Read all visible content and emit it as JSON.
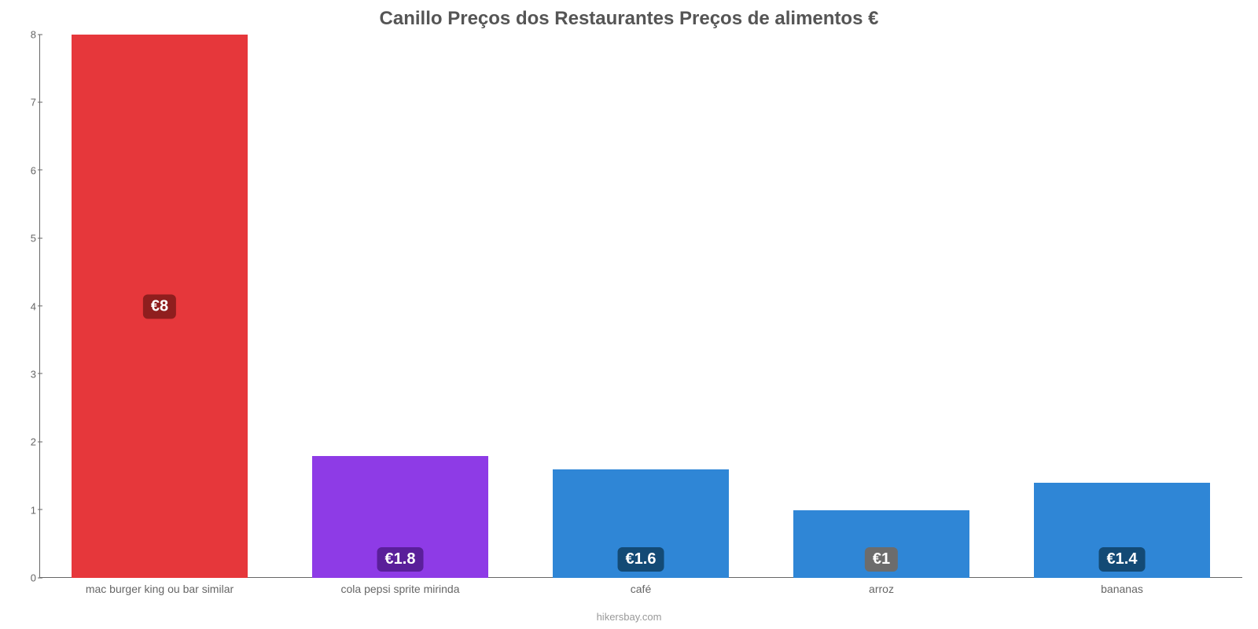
{
  "chart": {
    "type": "bar",
    "title": "Canillo Preços dos Restaurantes Preços de alimentos €",
    "title_fontsize": 24,
    "title_color": "#555555",
    "attribution": "hikersbay.com",
    "attribution_color": "#999999",
    "background_color": "#ffffff",
    "axis_color": "#666666",
    "label_fontsize": 14,
    "ylim": [
      0,
      8
    ],
    "ytick_step": 1,
    "yticks": [
      {
        "v": 0,
        "label": "0"
      },
      {
        "v": 1,
        "label": "1"
      },
      {
        "v": 2,
        "label": "2"
      },
      {
        "v": 3,
        "label": "3"
      },
      {
        "v": 4,
        "label": "4"
      },
      {
        "v": 5,
        "label": "5"
      },
      {
        "v": 6,
        "label": "6"
      },
      {
        "v": 7,
        "label": "7"
      },
      {
        "v": 8,
        "label": "8"
      }
    ],
    "bar_width": 0.73,
    "value_badge_fontsize": 20,
    "categories": [
      {
        "key": "mac",
        "label": "mac burger king ou bar similar",
        "value": 8.0,
        "display": "€8",
        "color": "#e6373b",
        "badge_bg": "#8f1e1e"
      },
      {
        "key": "cola",
        "label": "cola pepsi sprite mirinda",
        "value": 1.8,
        "display": "€1.8",
        "color": "#8e3be6",
        "badge_bg": "#5a1f9a"
      },
      {
        "key": "cafe",
        "label": "café",
        "value": 1.6,
        "display": "€1.6",
        "color": "#2f86d6",
        "badge_bg": "#134a75"
      },
      {
        "key": "arroz",
        "label": "arroz",
        "value": 1.0,
        "display": "€1",
        "color": "#2f86d6",
        "badge_bg": "#6c6c6c"
      },
      {
        "key": "banana",
        "label": "bananas",
        "value": 1.4,
        "display": "€1.4",
        "color": "#2f86d6",
        "badge_bg": "#134a75"
      }
    ]
  }
}
